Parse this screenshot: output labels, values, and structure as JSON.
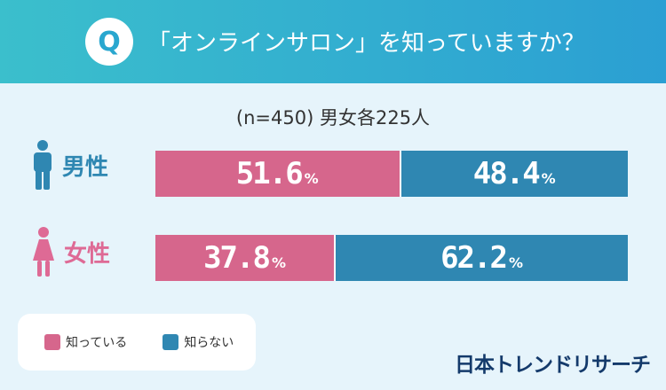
{
  "header": {
    "badge": "Q",
    "question": "「オンラインサロン」を知っていますか？"
  },
  "sample_note": "(n=450) 男女各225人",
  "colors": {
    "header_start": "#3bbfcc",
    "header_end": "#2b9fd3",
    "know": "#d6668c",
    "dont_know": "#2f87b2",
    "male": "#2f87b2",
    "female": "#de6a95"
  },
  "chart_data": {
    "type": "bar",
    "stacked": true,
    "orientation": "horizontal",
    "categories": [
      "男性",
      "女性"
    ],
    "series": [
      {
        "name": "知っている",
        "values": [
          51.6,
          37.8
        ]
      },
      {
        "name": "知らない",
        "values": [
          48.4,
          62.2
        ]
      }
    ],
    "value_suffix": "%",
    "xlim": [
      0,
      100
    ],
    "legend": "bottom-left"
  },
  "legend": {
    "items": [
      {
        "label": "知っている",
        "icon": "pink-square"
      },
      {
        "label": "知らない",
        "icon": "blue-square"
      }
    ]
  },
  "rows": [
    {
      "label": "男性",
      "icon": "male-icon"
    },
    {
      "label": "女性",
      "icon": "female-icon"
    }
  ],
  "brand": "日本トレンドリサーチ"
}
